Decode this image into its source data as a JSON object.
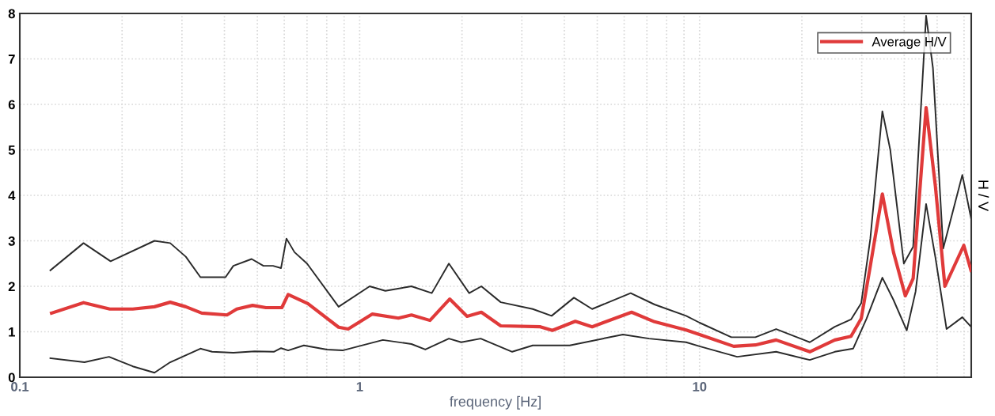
{
  "chart_data": {
    "type": "line",
    "xlabel": "frequency [Hz]",
    "ylabel": "H / V",
    "log": "x",
    "grid": true,
    "legend": "top right",
    "line_style": "solid",
    "marker": "none",
    "xlim": [
      0.1,
      63
    ],
    "ylim": [
      0,
      8
    ],
    "xticks": [
      0.1,
      {
        "value": 0.2,
        "label": null
      },
      {
        "value": 0.3,
        "label": null
      },
      {
        "value": 0.4,
        "label": null
      },
      {
        "value": 0.5,
        "label": null
      },
      {
        "value": 0.6,
        "label": null
      },
      {
        "value": 0.7,
        "label": null
      },
      {
        "value": 0.8,
        "label": null
      },
      {
        "value": 0.9,
        "label": null
      },
      1,
      {
        "value": 2,
        "label": null
      },
      {
        "value": 3,
        "label": null
      },
      {
        "value": 4,
        "label": null
      },
      {
        "value": 5,
        "label": null
      },
      {
        "value": 6,
        "label": null
      },
      {
        "value": 7,
        "label": null
      },
      {
        "value": 8,
        "label": null
      },
      {
        "value": 9,
        "label": null
      },
      10,
      {
        "value": 20,
        "label": null
      },
      {
        "value": 30,
        "label": null
      },
      {
        "value": 40,
        "label": null
      },
      {
        "value": 50,
        "label": null
      },
      {
        "value": 60,
        "label": null
      }
    ],
    "yticks": [
      0,
      1,
      2,
      3,
      4,
      5,
      6,
      7,
      8
    ],
    "series": [
      {
        "color": "#2a2a2a",
        "x": [
          0.123,
          0.154,
          0.185,
          0.249,
          0.277,
          0.308,
          0.34,
          0.403,
          0.425,
          0.481,
          0.521,
          0.556,
          0.587,
          0.609,
          0.643,
          0.7,
          0.867,
          1.07,
          1.19,
          1.42,
          1.63,
          1.83,
          2.1,
          2.28,
          2.6,
          3.23,
          3.67,
          4.27,
          4.83,
          6.27,
          7.37,
          9.13,
          10.0,
          12.4,
          14.6,
          16.8,
          21.1,
          25.0,
          27.9,
          29.9,
          31.8,
          34.5,
          36.4,
          39.9,
          42.5,
          46.4,
          48.6,
          52.1,
          59.3,
          62.9
        ],
        "values": [
          2.35,
          2.95,
          2.55,
          3.0,
          2.95,
          2.65,
          2.2,
          2.2,
          2.45,
          2.6,
          2.45,
          2.45,
          2.4,
          3.05,
          2.75,
          2.5,
          1.55,
          2.0,
          1.9,
          2.0,
          1.85,
          2.5,
          1.85,
          2.0,
          1.65,
          1.5,
          1.35,
          1.75,
          1.5,
          1.85,
          1.6,
          1.35,
          1.2,
          0.88,
          0.88,
          1.06,
          0.77,
          1.11,
          1.27,
          1.63,
          3.05,
          5.85,
          5.0,
          2.5,
          2.87,
          7.95,
          6.8,
          2.83,
          4.45,
          3.5
        ]
      },
      {
        "color": "#2a2a2a",
        "x": [
          0.123,
          0.155,
          0.183,
          0.215,
          0.249,
          0.277,
          0.34,
          0.368,
          0.425,
          0.491,
          0.559,
          0.587,
          0.616,
          0.685,
          0.801,
          0.891,
          1.17,
          1.42,
          1.56,
          1.83,
          1.99,
          2.27,
          2.81,
          3.23,
          4.15,
          5.95,
          7.1,
          9.13,
          10.0,
          12.9,
          16.8,
          21.1,
          25.0,
          28.3,
          31.0,
          34.5,
          37.2,
          40.7,
          43.2,
          46.4,
          49.4,
          53.3,
          59.3,
          62.9
        ],
        "values": [
          0.42,
          0.33,
          0.45,
          0.24,
          0.1,
          0.33,
          0.63,
          0.56,
          0.54,
          0.57,
          0.56,
          0.64,
          0.59,
          0.7,
          0.61,
          0.59,
          0.82,
          0.73,
          0.61,
          0.85,
          0.77,
          0.85,
          0.56,
          0.7,
          0.7,
          0.94,
          0.85,
          0.77,
          0.68,
          0.45,
          0.56,
          0.38,
          0.56,
          0.63,
          1.29,
          2.19,
          1.7,
          1.03,
          1.88,
          3.81,
          2.64,
          1.06,
          1.32,
          1.11
        ]
      },
      {
        "name": "Average H/V",
        "color": "#e03a3a",
        "x": [
          0.124,
          0.154,
          0.184,
          0.215,
          0.249,
          0.277,
          0.308,
          0.343,
          0.407,
          0.435,
          0.484,
          0.53,
          0.59,
          0.616,
          0.704,
          0.867,
          0.925,
          1.09,
          1.3,
          1.42,
          1.61,
          1.84,
          2.07,
          2.28,
          2.6,
          3.4,
          3.69,
          4.31,
          4.83,
          6.31,
          7.37,
          9.13,
          10.0,
          12.6,
          14.6,
          16.8,
          21.1,
          25.0,
          27.9,
          29.9,
          31.8,
          34.5,
          37.2,
          40.3,
          42.5,
          46.4,
          49.4,
          52.7,
          59.9,
          62.9
        ],
        "values": [
          1.41,
          1.64,
          1.5,
          1.5,
          1.55,
          1.65,
          1.55,
          1.41,
          1.37,
          1.5,
          1.58,
          1.53,
          1.53,
          1.82,
          1.62,
          1.1,
          1.06,
          1.39,
          1.3,
          1.37,
          1.25,
          1.72,
          1.34,
          1.43,
          1.13,
          1.11,
          1.03,
          1.23,
          1.11,
          1.43,
          1.22,
          1.04,
          0.94,
          0.68,
          0.71,
          0.82,
          0.56,
          0.82,
          0.9,
          1.29,
          2.45,
          4.03,
          2.75,
          1.79,
          2.17,
          5.93,
          4.21,
          2.0,
          2.9,
          2.35
        ]
      }
    ]
  }
}
